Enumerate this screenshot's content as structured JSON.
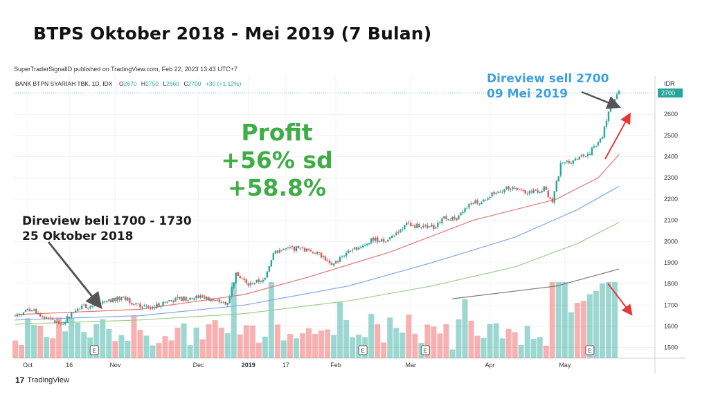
{
  "slide": {
    "title": "BTPS Oktober 2018 - Mei 2019 (7 Bulan)"
  },
  "publisher": "SuperTraderSignalID published on TradingView.com, Feb 22, 2023 13:43 UTC+7",
  "legend": {
    "symbol": "BANK BTPN SYARIAH TBK, 1D, IDX",
    "o_label": "O",
    "o": "2670",
    "h_label": "H",
    "h": "2750",
    "l_label": "L",
    "l": "2660",
    "c_label": "C",
    "c": "2700",
    "change": "+30 (+1.12%)"
  },
  "annotations": {
    "profit_line1": "Profit",
    "profit_line2": "+56% sd +58.8%",
    "buy_line1": "Direview beli 1700 - 1730",
    "buy_line2": "25 Oktober 2018",
    "sell_line1": "Direview sell 2700",
    "sell_line2": "09 Mei 2019"
  },
  "footer": {
    "brand": "TradingView"
  },
  "colors": {
    "up": "#26a69a",
    "down": "#ef5350",
    "ma_red": "#e57373",
    "ma_blue": "#7fa8e6",
    "ma_green": "#9ccc8c",
    "ma_dark": "#777777",
    "profit": "#3fad46",
    "sell": "#3fa0e0",
    "arrow_red": "#e53935",
    "arrow_grey": "#555555"
  },
  "chart_data": {
    "type": "candlestick",
    "currency": "IDR",
    "last_price": 2700,
    "ylim": [
      1450,
      2780
    ],
    "yticks": [
      1500,
      1600,
      1700,
      1800,
      1900,
      2000,
      2100,
      2200,
      2300,
      2400,
      2500,
      2600
    ],
    "xticks": [
      "Oct",
      "16",
      "Nov",
      "Dec",
      "2019",
      "17",
      "Feb",
      "Mar",
      "Apr",
      "May"
    ],
    "earnings_marker": "E",
    "price_anchors": [
      [
        0,
        1650
      ],
      [
        8,
        1680
      ],
      [
        14,
        1640
      ],
      [
        22,
        1610
      ],
      [
        30,
        1690
      ],
      [
        40,
        1700
      ],
      [
        52,
        1740
      ],
      [
        58,
        1700
      ],
      [
        66,
        1690
      ],
      [
        74,
        1720
      ],
      [
        80,
        1730
      ],
      [
        90,
        1740
      ],
      [
        96,
        1720
      ],
      [
        102,
        1710
      ],
      [
        106,
        1850
      ],
      [
        112,
        1800
      ],
      [
        116,
        1810
      ],
      [
        120,
        1820
      ],
      [
        124,
        1950
      ],
      [
        132,
        1970
      ],
      [
        140,
        1960
      ],
      [
        148,
        1930
      ],
      [
        152,
        1880
      ],
      [
        158,
        1940
      ],
      [
        166,
        1980
      ],
      [
        172,
        2010
      ],
      [
        178,
        2000
      ],
      [
        184,
        2050
      ],
      [
        188,
        2080
      ],
      [
        196,
        2070
      ],
      [
        202,
        2070
      ],
      [
        206,
        2120
      ],
      [
        212,
        2100
      ],
      [
        218,
        2180
      ],
      [
        224,
        2190
      ],
      [
        230,
        2230
      ],
      [
        236,
        2250
      ],
      [
        242,
        2240
      ],
      [
        248,
        2230
      ],
      [
        254,
        2250
      ],
      [
        258,
        2190
      ],
      [
        262,
        2360
      ],
      [
        270,
        2390
      ],
      [
        276,
        2420
      ],
      [
        282,
        2500
      ],
      [
        286,
        2640
      ],
      [
        290,
        2700
      ]
    ],
    "ma_lines": [
      {
        "color": "ma_red",
        "points": [
          [
            0,
            1655
          ],
          [
            60,
            1680
          ],
          [
            110,
            1750
          ],
          [
            140,
            1830
          ],
          [
            180,
            1950
          ],
          [
            220,
            2100
          ],
          [
            260,
            2200
          ],
          [
            280,
            2300
          ],
          [
            290,
            2410
          ]
        ]
      },
      {
        "color": "ma_blue",
        "points": [
          [
            0,
            1630
          ],
          [
            60,
            1650
          ],
          [
            110,
            1700
          ],
          [
            160,
            1790
          ],
          [
            200,
            1900
          ],
          [
            240,
            2020
          ],
          [
            270,
            2150
          ],
          [
            290,
            2260
          ]
        ]
      },
      {
        "color": "ma_green",
        "points": [
          [
            0,
            1610
          ],
          [
            60,
            1630
          ],
          [
            110,
            1660
          ],
          [
            160,
            1720
          ],
          [
            200,
            1790
          ],
          [
            240,
            1880
          ],
          [
            270,
            1990
          ],
          [
            290,
            2090
          ]
        ]
      },
      {
        "color": "ma_dark",
        "points": [
          [
            210,
            1730
          ],
          [
            260,
            1790
          ],
          [
            290,
            1870
          ]
        ]
      }
    ]
  }
}
